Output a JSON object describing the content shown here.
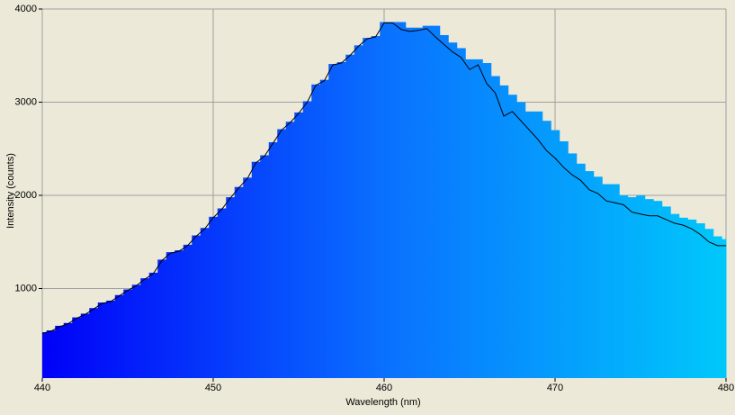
{
  "chart_data": {
    "type": "spectrum",
    "x_label": "Wavelength (nm)",
    "y_label": "Intensity (counts)",
    "x": [
      440,
      440.5,
      441,
      441.5,
      442,
      442.5,
      443,
      443.5,
      444,
      444.5,
      445,
      445.5,
      446,
      446.5,
      447,
      447.5,
      448,
      448.5,
      449,
      449.5,
      450,
      450.5,
      451,
      451.5,
      452,
      452.5,
      453,
      453.5,
      454,
      454.5,
      455,
      455.5,
      456,
      456.5,
      457,
      457.5,
      458,
      458.5,
      459,
      459.5,
      460,
      460.5,
      461,
      461.5,
      462,
      462.5,
      463,
      463.5,
      464,
      464.5,
      465,
      465.5,
      466,
      466.5,
      467,
      467.5,
      468,
      468.5,
      469,
      469.5,
      470,
      470.5,
      471,
      471.5,
      472,
      472.5,
      473,
      473.5,
      474,
      474.5,
      475,
      475.5,
      476,
      476.5,
      477,
      477.5,
      478,
      478.5,
      479,
      479.5,
      480
    ],
    "series": [
      {
        "mark": "bar",
        "gradient": [
          "#0000f8",
          "#0a70ff",
          "#00c8fa"
        ],
        "values": [
          530,
          550,
          600,
          630,
          690,
          730,
          790,
          850,
          870,
          930,
          990,
          1040,
          1110,
          1170,
          1310,
          1390,
          1410,
          1470,
          1570,
          1650,
          1770,
          1860,
          1980,
          2090,
          2190,
          2360,
          2430,
          2570,
          2710,
          2790,
          2890,
          3010,
          3190,
          3240,
          3410,
          3430,
          3510,
          3610,
          3690,
          3710,
          3860,
          3860,
          3860,
          3800,
          3800,
          3820,
          3820,
          3720,
          3640,
          3580,
          3460,
          3460,
          3420,
          3280,
          3180,
          3080,
          3000,
          2900,
          2900,
          2800,
          2700,
          2580,
          2450,
          2340,
          2260,
          2200,
          2120,
          2120,
          2000,
          1980,
          2000,
          1960,
          1940,
          1880,
          1800,
          1760,
          1740,
          1700,
          1640,
          1560,
          1530
        ]
      },
      {
        "mark": "line",
        "color": "#000000",
        "values": [
          520,
          540,
          590,
          620,
          680,
          720,
          780,
          840,
          860,
          920,
          980,
          1030,
          1100,
          1160,
          1300,
          1380,
          1400,
          1460,
          1560,
          1640,
          1760,
          1850,
          1970,
          2080,
          2180,
          2350,
          2420,
          2560,
          2700,
          2780,
          2880,
          3000,
          3180,
          3230,
          3400,
          3420,
          3500,
          3600,
          3680,
          3700,
          3850,
          3850,
          3780,
          3760,
          3770,
          3790,
          3700,
          3620,
          3540,
          3480,
          3350,
          3400,
          3200,
          3100,
          2850,
          2900,
          2800,
          2700,
          2600,
          2480,
          2400,
          2300,
          2220,
          2160,
          2060,
          2020,
          1940,
          1920,
          1900,
          1820,
          1800,
          1780,
          1780,
          1740,
          1700,
          1680,
          1640,
          1580,
          1500,
          1460,
          1460
        ]
      }
    ],
    "xlim": [
      440,
      480
    ],
    "xticks": [
      440,
      450,
      460,
      470,
      480
    ],
    "ylim": [
      0,
      4000
    ],
    "yticks": [
      1000,
      2000,
      3000,
      4000
    ],
    "grid": true
  }
}
